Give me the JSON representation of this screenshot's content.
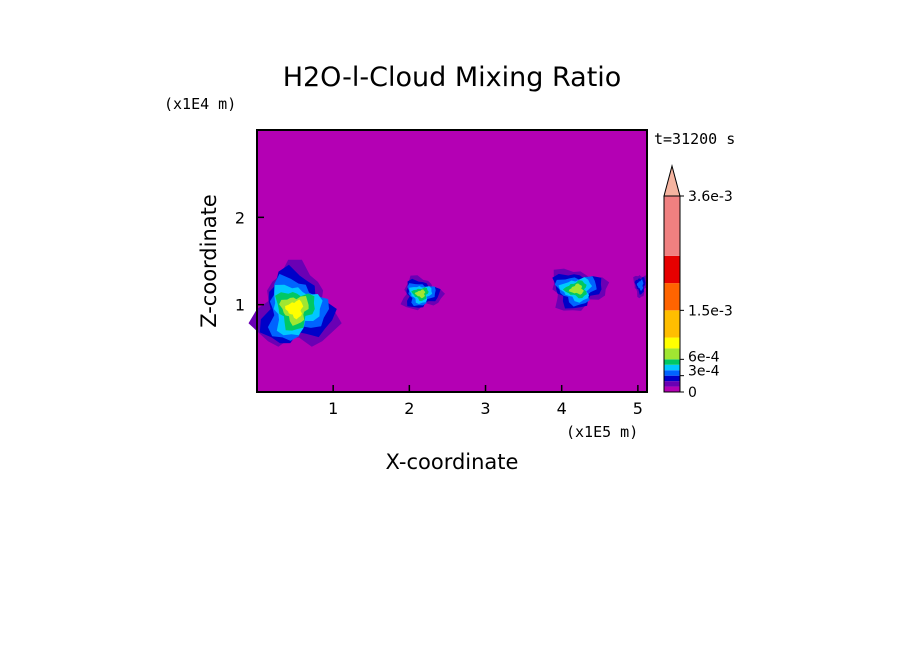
{
  "chart_data": {
    "type": "heatmap",
    "title": "H2O-l-Cloud Mixing Ratio",
    "time_label": "t=31200 s",
    "xlabel": "X-coordinate",
    "ylabel": "Z-coordinate",
    "x_unit": "(x1E5 m)",
    "y_unit": "(x1E4 m)",
    "xlim": [
      0,
      5.12
    ],
    "ylim": [
      0,
      3.0
    ],
    "x_ticks": [
      1,
      2,
      3,
      4,
      5
    ],
    "y_ticks": [
      1,
      2
    ],
    "background_value": 0,
    "background_color": "#b400b4",
    "colorbar": {
      "tick_labels": [
        "0",
        "3e-4",
        "6e-4",
        "1.5e-3",
        "3.6e-3"
      ],
      "tick_values": [
        0,
        0.0003,
        0.0006,
        0.0015,
        0.0036
      ],
      "levels": [
        0,
        0.0001,
        0.0002,
        0.0003,
        0.0004,
        0.0005,
        0.0006,
        0.0008,
        0.001,
        0.0015,
        0.002,
        0.0025,
        0.0036,
        0.005
      ],
      "colors": [
        "#b400b4",
        "#6a00b4",
        "#0000c8",
        "#0064ff",
        "#00c8ff",
        "#00c864",
        "#a0e632",
        "#ffff00",
        "#ffbe00",
        "#ff6400",
        "#e60000",
        "#f08080",
        "#f5b4a0"
      ],
      "extend": "max"
    },
    "cloud_regions": [
      {
        "x": [
          0.0,
          1.0
        ],
        "z": [
          0.5,
          1.4
        ],
        "peak": 0.0008
      },
      {
        "x": [
          1.9,
          2.4
        ],
        "z": [
          0.95,
          1.3
        ],
        "peak": 0.0006
      },
      {
        "x": [
          3.85,
          4.55
        ],
        "z": [
          0.95,
          1.4
        ],
        "peak": 0.0006
      },
      {
        "x": [
          4.95,
          5.12
        ],
        "z": [
          1.1,
          1.35
        ],
        "peak": 0.0003
      }
    ]
  }
}
